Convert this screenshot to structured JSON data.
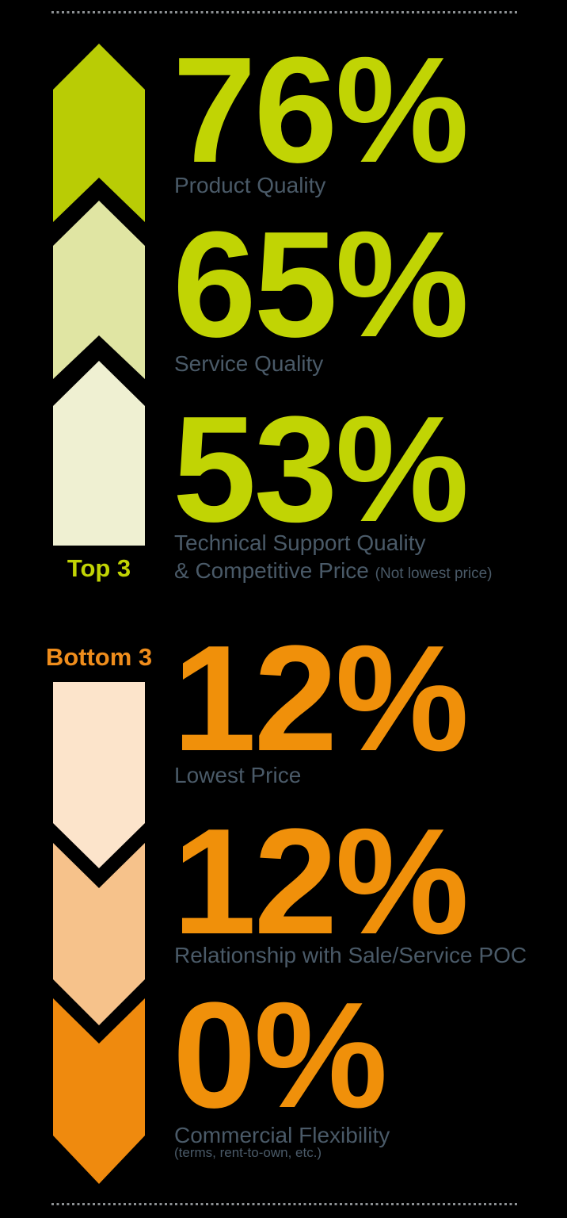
{
  "top_section": {
    "label": "Top 3",
    "items": [
      {
        "value": "76%",
        "label": "Product Quality"
      },
      {
        "value": "65%",
        "label": "Service Quality"
      },
      {
        "value": "53%",
        "label": "Technical Support Quality",
        "label2": "& Competitive Price",
        "note": "(Not lowest price)"
      }
    ]
  },
  "bottom_section": {
    "label": "Bottom 3",
    "items": [
      {
        "value": "12%",
        "label": "Lowest Price"
      },
      {
        "value": "12%",
        "label": "Relationship with Sale/Service POC"
      },
      {
        "value": "0%",
        "label": "Commercial Flexibility",
        "note": "(terms, rent-to-own, etc.)"
      }
    ]
  },
  "colors": {
    "green_arrow_1": "#b9cc05",
    "green_arrow_2": "#e0e5a3",
    "green_arrow_3": "#eff0d2",
    "peach_arrow_1": "#fce4cb",
    "peach_arrow_2": "#f6c28b",
    "orange_arrow_3": "#ef8a0e",
    "green_text": "#c1d404",
    "orange_text": "#f0900a",
    "label_text": "#4a5a68",
    "dotted_rule": "#8d9194",
    "background": "#000000"
  },
  "chart_data": {
    "type": "bar",
    "title": "",
    "categories": [
      "Product Quality",
      "Service Quality",
      "Technical Support Quality & Competitive Price (Not lowest price)",
      "Lowest Price",
      "Relationship with Sale/Service POC",
      "Commercial Flexibility (terms, rent-to-own, etc.)"
    ],
    "values": [
      76,
      65,
      53,
      12,
      12,
      0
    ],
    "groups": [
      "Top 3",
      "Top 3",
      "Top 3",
      "Bottom 3",
      "Bottom 3",
      "Bottom 3"
    ],
    "xlabel": "",
    "ylabel": "",
    "ylim": [
      0,
      100
    ],
    "legend_position": "none",
    "grid": false
  }
}
